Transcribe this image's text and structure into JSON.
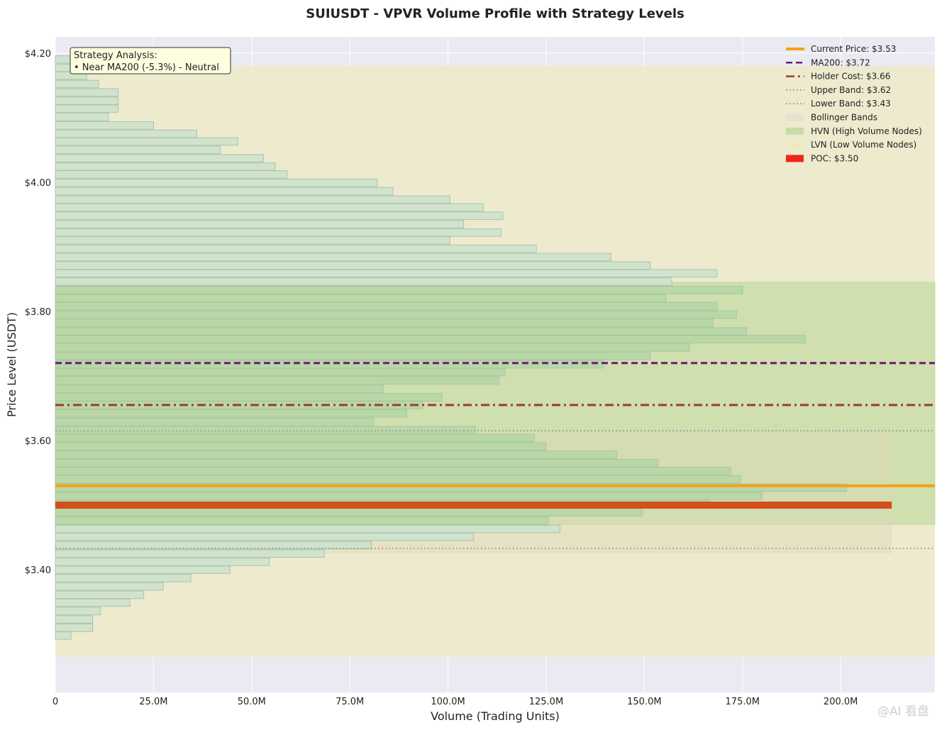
{
  "chart_data": {
    "type": "bar",
    "orientation": "horizontal",
    "title": "SUIUSDT - VPVR Volume Profile with Strategy Levels",
    "xlabel": "Volume (Trading Units)",
    "ylabel": "Price Level (USDT)",
    "xlim": [
      0,
      224000000
    ],
    "ylim": [
      3.21,
      4.225
    ],
    "x_ticks": [
      {
        "v": 0,
        "label": "0"
      },
      {
        "v": 25000000,
        "label": "25.0M"
      },
      {
        "v": 50000000,
        "label": "50.0M"
      },
      {
        "v": 75000000,
        "label": "75.0M"
      },
      {
        "v": 100000000,
        "label": "100.0M"
      },
      {
        "v": 125000000,
        "label": "125.0M"
      },
      {
        "v": 150000000,
        "label": "150.0M"
      },
      {
        "v": 175000000,
        "label": "175.0M"
      },
      {
        "v": 200000000,
        "label": "200.0M"
      }
    ],
    "y_ticks": [
      {
        "v": 3.4,
        "label": "$3.40"
      },
      {
        "v": 3.6,
        "label": "$3.60"
      },
      {
        "v": 3.8,
        "label": "$3.80"
      },
      {
        "v": 4.0,
        "label": "$4.00"
      },
      {
        "v": 4.2,
        "label": "$4.20"
      }
    ],
    "grid": true,
    "legend_position": "top-right",
    "bin_height": 0.0116,
    "volume_bins": [
      {
        "price": 4.19,
        "volume": 4000000
      },
      {
        "price": 4.177,
        "volume": 8000000
      },
      {
        "price": 4.165,
        "volume": 8000000
      },
      {
        "price": 4.152,
        "volume": 11000000
      },
      {
        "price": 4.139,
        "volume": 16000000
      },
      {
        "price": 4.126,
        "volume": 16000000
      },
      {
        "price": 4.114,
        "volume": 16000000
      },
      {
        "price": 4.101,
        "volume": 13500000
      },
      {
        "price": 4.088,
        "volume": 25000000
      },
      {
        "price": 4.075,
        "volume": 36000000
      },
      {
        "price": 4.063,
        "volume": 46500000
      },
      {
        "price": 4.05,
        "volume": 42000000
      },
      {
        "price": 4.037,
        "volume": 53000000
      },
      {
        "price": 4.024,
        "volume": 56000000
      },
      {
        "price": 4.012,
        "volume": 59000000
      },
      {
        "price": 3.999,
        "volume": 82000000
      },
      {
        "price": 3.986,
        "volume": 86000000
      },
      {
        "price": 3.973,
        "volume": 100500000
      },
      {
        "price": 3.961,
        "volume": 109000000
      },
      {
        "price": 3.948,
        "volume": 114000000
      },
      {
        "price": 3.935,
        "volume": 104000000
      },
      {
        "price": 3.922,
        "volume": 113500000
      },
      {
        "price": 3.91,
        "volume": 100500000
      },
      {
        "price": 3.897,
        "volume": 122500000
      },
      {
        "price": 3.884,
        "volume": 141500000
      },
      {
        "price": 3.871,
        "volume": 151500000
      },
      {
        "price": 3.859,
        "volume": 168500000
      },
      {
        "price": 3.846,
        "volume": 157000000
      },
      {
        "price": 3.833,
        "volume": 175000000
      },
      {
        "price": 3.82,
        "volume": 155500000
      },
      {
        "price": 3.808,
        "volume": 168500000
      },
      {
        "price": 3.795,
        "volume": 173500000
      },
      {
        "price": 3.782,
        "volume": 167500000
      },
      {
        "price": 3.769,
        "volume": 176000000
      },
      {
        "price": 3.757,
        "volume": 191000000
      },
      {
        "price": 3.744,
        "volume": 161500000
      },
      {
        "price": 3.731,
        "volume": 151500000
      },
      {
        "price": 3.718,
        "volume": 139500000
      },
      {
        "price": 3.706,
        "volume": 114500000
      },
      {
        "price": 3.693,
        "volume": 113000000
      },
      {
        "price": 3.68,
        "volume": 83500000
      },
      {
        "price": 3.667,
        "volume": 98500000
      },
      {
        "price": 3.655,
        "volume": 93500000
      },
      {
        "price": 3.642,
        "volume": 89500000
      },
      {
        "price": 3.629,
        "volume": 81000000
      },
      {
        "price": 3.616,
        "volume": 107000000
      },
      {
        "price": 3.604,
        "volume": 122000000
      },
      {
        "price": 3.591,
        "volume": 125000000
      },
      {
        "price": 3.578,
        "volume": 143000000
      },
      {
        "price": 3.565,
        "volume": 153500000
      },
      {
        "price": 3.553,
        "volume": 172000000
      },
      {
        "price": 3.54,
        "volume": 174500000
      },
      {
        "price": 3.527,
        "volume": 201500000
      },
      {
        "price": 3.514,
        "volume": 180000000
      },
      {
        "price": 3.502,
        "volume": 166500000
      },
      {
        "price": 3.489,
        "volume": 149500000
      },
      {
        "price": 3.476,
        "volume": 125500000
      },
      {
        "price": 3.463,
        "volume": 128500000
      },
      {
        "price": 3.451,
        "volume": 106500000
      },
      {
        "price": 3.438,
        "volume": 80500000
      },
      {
        "price": 3.425,
        "volume": 68500000
      },
      {
        "price": 3.412,
        "volume": 54500000
      },
      {
        "price": 3.4,
        "volume": 44500000
      },
      {
        "price": 3.387,
        "volume": 34500000
      },
      {
        "price": 3.374,
        "volume": 27500000
      },
      {
        "price": 3.361,
        "volume": 22500000
      },
      {
        "price": 3.349,
        "volume": 19000000
      },
      {
        "price": 3.336,
        "volume": 11500000
      },
      {
        "price": 3.323,
        "volume": 9500000
      },
      {
        "price": 3.31,
        "volume": 9500000
      },
      {
        "price": 3.298,
        "volume": 4000000
      }
    ],
    "bollinger_bands": {
      "lower": 3.265,
      "upper": 4.18,
      "color": "#eeeacb"
    },
    "hvn_zone": {
      "price_from": 3.47,
      "price_to": 3.845,
      "color": "#c5dca3"
    },
    "lvn_zone": {
      "price_from": 3.425,
      "price_to": 3.615,
      "volume_to": 213000000,
      "color": "#dcd9b5"
    },
    "poc": {
      "price": 3.5,
      "volume": 213000000,
      "color": "#d24f1e"
    },
    "levels": [
      {
        "id": "current-price",
        "price": 3.53,
        "color": "#f2a213",
        "style": "solid"
      },
      {
        "id": "ma200",
        "price": 3.72,
        "color": "#6e1a75",
        "style": "dashed"
      },
      {
        "id": "holder-cost",
        "price": 3.655,
        "color": "#9e3a32",
        "style": "dashdot"
      },
      {
        "id": "upper-band",
        "price": 3.615,
        "color": "#999999",
        "style": "dotted"
      },
      {
        "id": "lower-band",
        "price": 3.433,
        "color": "#999999",
        "style": "dotted"
      }
    ],
    "legend": [
      {
        "label": "Current Price: $3.53",
        "kind": "line",
        "color": "#f2a213",
        "style": "solid"
      },
      {
        "label": "MA200: $3.72",
        "kind": "line",
        "color": "#6e1a75",
        "style": "dashed"
      },
      {
        "label": "Holder Cost: $3.66",
        "kind": "line",
        "color": "#9e3a32",
        "style": "dashdot"
      },
      {
        "label": "Upper Band: $3.62",
        "kind": "line",
        "color": "#999999",
        "style": "dotted"
      },
      {
        "label": "Lower Band: $3.43",
        "kind": "line",
        "color": "#999999",
        "style": "dotted"
      },
      {
        "label": "Bollinger Bands",
        "kind": "patch",
        "color": "#e4e2cc"
      },
      {
        "label": "HVN (High Volume Nodes)",
        "kind": "patch",
        "color": "#c5dca3"
      },
      {
        "label": "LVN (Low Volume Nodes)",
        "kind": "patch",
        "color": "#eceac0"
      },
      {
        "label": "POC: $3.50",
        "kind": "patch",
        "color": "#ee1c0e"
      }
    ],
    "annotation": {
      "lines": [
        "Strategy Analysis:",
        "• Near MA200 (-5.3%) - Neutral"
      ]
    }
  },
  "watermark": "@AI 看盘"
}
